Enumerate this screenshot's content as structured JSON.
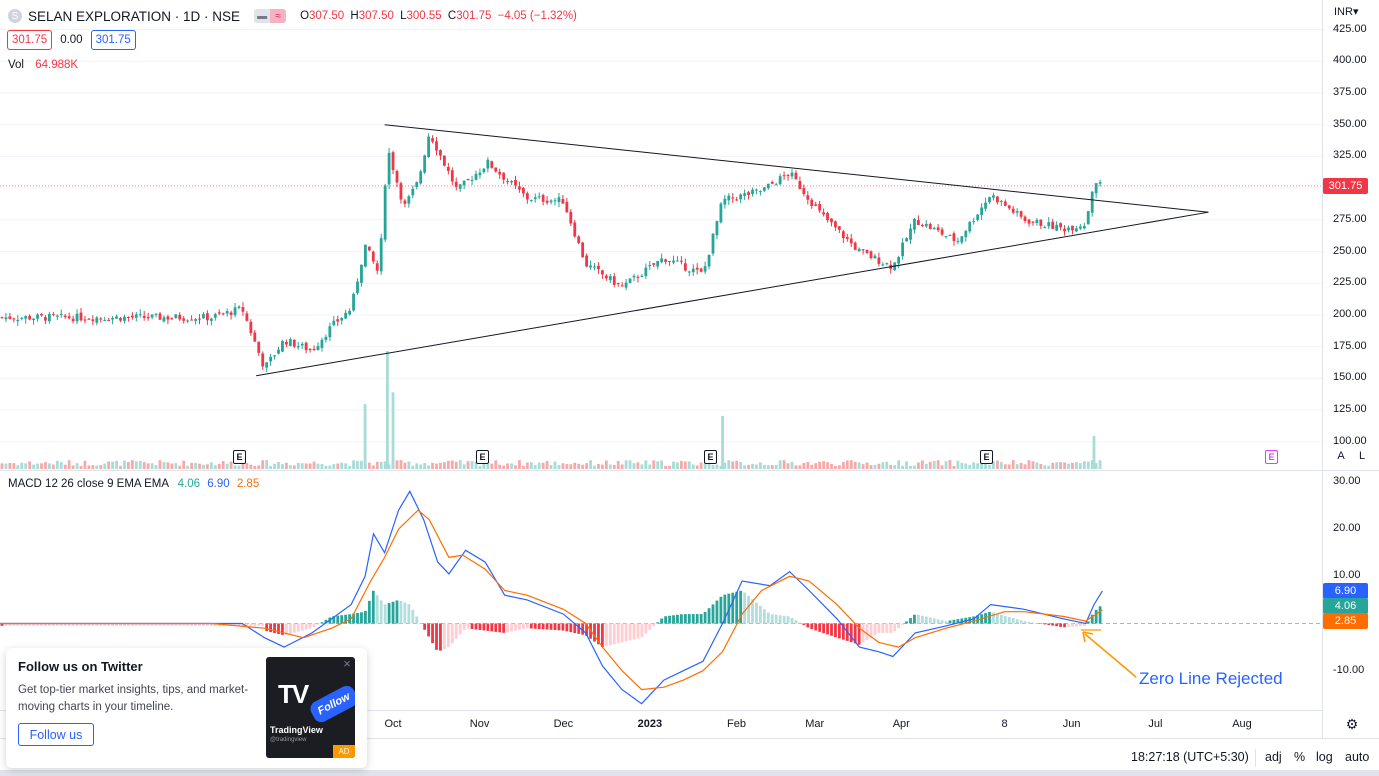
{
  "header": {
    "symbol_icon": "S",
    "title": "SELAN EXPLORATION · 1D · NSE",
    "toggle_left": "▬",
    "toggle_right": "≈",
    "ohlc": [
      {
        "label": "O",
        "value": "307.50"
      },
      {
        "label": "H",
        "value": "307.50"
      },
      {
        "label": "L",
        "value": "300.55"
      },
      {
        "label": "C",
        "value": "301.75"
      },
      {
        "label": "",
        "value": "−4.05 (−1.32%)"
      }
    ]
  },
  "price_boxes": {
    "sell": "301.75",
    "spread": "0.00",
    "buy": "301.75"
  },
  "volume": {
    "label": "Vol",
    "value": "64.988K"
  },
  "macd_legend": {
    "label": "MACD 12 26 close 9 EMA EMA",
    "hist": "4.06",
    "macd": "6.90",
    "signal": "2.85"
  },
  "currency": "INR▾",
  "current_price_label": "301.75",
  "scale_buttons": {
    "auto_label": "A",
    "log_label": "L"
  },
  "earnings_marker": "E",
  "bottom_bar": {
    "time": "18:27:18 (UTC+5:30)",
    "adj": "adj",
    "percent": "%",
    "log": "log",
    "auto": "auto"
  },
  "annotation": "Zero Line Rejected",
  "popup": {
    "title": "Follow us on Twitter",
    "body": "Get top-tier market insights, tips, and market-moving charts in your timeline.",
    "button": "Follow us",
    "image_follow": "Follow",
    "image_brand": "TradingView",
    "image_handle": "@tradingview",
    "ad": "AD",
    "close": "×"
  },
  "colors": {
    "up": "#26a69a",
    "down": "#f23645",
    "macd_line": "#2962ff",
    "signal_line": "#ff6d00",
    "annotation": "#2962ff"
  },
  "chart_data": [
    {
      "type": "candlestick",
      "title": "SELAN EXPLORATION · 1D · NSE",
      "ylim": [
        100,
        425
      ],
      "y_ticks": [
        "425.00",
        "400.00",
        "375.00",
        "350.00",
        "325.00",
        "300.00",
        "275.00",
        "250.00",
        "225.00",
        "200.00",
        "175.00",
        "150.00",
        "125.00",
        "100.00"
      ],
      "x_ticks": [
        "Oct",
        "Nov",
        "Dec",
        "2023",
        "Feb",
        "Mar",
        "Apr",
        "8",
        "Jun",
        "Jul",
        "Aug"
      ],
      "approx_close_path": [
        {
          "date": "2022-07-28",
          "close": 198
        },
        {
          "date": "2022-08-08",
          "close": 205
        },
        {
          "date": "2022-08-16",
          "close": 158
        },
        {
          "date": "2022-08-23",
          "close": 180
        },
        {
          "date": "2022-09-02",
          "close": 172
        },
        {
          "date": "2022-09-09",
          "close": 191
        },
        {
          "date": "2022-09-16",
          "close": 205
        },
        {
          "date": "2022-09-21",
          "close": 255
        },
        {
          "date": "2022-09-26",
          "close": 232
        },
        {
          "date": "2022-09-29",
          "close": 332
        },
        {
          "date": "2022-10-05",
          "close": 285
        },
        {
          "date": "2022-10-10",
          "close": 305
        },
        {
          "date": "2022-10-14",
          "close": 344
        },
        {
          "date": "2022-10-24",
          "close": 298
        },
        {
          "date": "2022-11-04",
          "close": 320
        },
        {
          "date": "2022-11-18",
          "close": 292
        },
        {
          "date": "2022-12-01",
          "close": 290
        },
        {
          "date": "2022-12-09",
          "close": 240
        },
        {
          "date": "2022-12-22",
          "close": 222
        },
        {
          "date": "2023-01-06",
          "close": 245
        },
        {
          "date": "2023-01-20",
          "close": 232
        },
        {
          "date": "2023-01-27",
          "close": 290
        },
        {
          "date": "2023-02-10",
          "close": 298
        },
        {
          "date": "2023-02-20",
          "close": 312
        },
        {
          "date": "2023-03-03",
          "close": 280
        },
        {
          "date": "2023-03-17",
          "close": 250
        },
        {
          "date": "2023-03-29",
          "close": 238
        },
        {
          "date": "2023-04-06",
          "close": 275
        },
        {
          "date": "2023-04-21",
          "close": 258
        },
        {
          "date": "2023-05-03",
          "close": 295
        },
        {
          "date": "2023-05-15",
          "close": 275
        },
        {
          "date": "2023-05-29",
          "close": 268
        },
        {
          "date": "2023-06-06",
          "close": 272
        },
        {
          "date": "2023-06-09",
          "close": 306
        },
        {
          "date": "2023-06-12",
          "close": 301.75
        }
      ],
      "trendlines": [
        {
          "name": "",
          "from": {
            "date": "2022-09-28",
            "value": 350
          },
          "to": {
            "date": "2023-07-20",
            "value": 281
          }
        },
        {
          "name": "",
          "from": {
            "date": "2022-08-13",
            "value": 152
          },
          "to": {
            "date": "2023-07-20",
            "value": 281
          }
        }
      ],
      "current_price": 301.75
    },
    {
      "type": "volume",
      "y_ticks": [
        "100.00"
      ],
      "spikes": [
        {
          "date": "2022-09-21",
          "relative": 0.55
        },
        {
          "date": "2022-09-29",
          "relative": 1.0
        },
        {
          "date": "2022-10-01",
          "relative": 0.65
        },
        {
          "date": "2023-01-27",
          "relative": 0.45
        },
        {
          "date": "2023-06-09",
          "relative": 0.28
        }
      ],
      "earnings_dates": [
        "2022-09-04",
        "2022-11-10",
        "2023-01-26",
        "2023-05-08",
        "2023-08-11"
      ]
    },
    {
      "type": "line",
      "title": "MACD 12 26 close 9 EMA EMA",
      "ylim": [
        -15,
        30
      ],
      "y_ticks": [
        "30.00",
        "20.00",
        "10.00",
        "-10.00"
      ],
      "series": [
        {
          "name": "",
          "color": "#2962ff",
          "points": [
            {
              "date": "2022-07-28",
              "value": 0
            },
            {
              "date": "2022-08-08",
              "value": 0
            },
            {
              "date": "2022-08-16",
              "value": -3
            },
            {
              "date": "2022-08-23",
              "value": -5
            },
            {
              "date": "2022-09-02",
              "value": -2
            },
            {
              "date": "2022-09-09",
              "value": 1
            },
            {
              "date": "2022-09-16",
              "value": 4
            },
            {
              "date": "2022-09-21",
              "value": 10
            },
            {
              "date": "2022-09-24",
              "value": 19
            },
            {
              "date": "2022-09-28",
              "value": 15
            },
            {
              "date": "2022-10-03",
              "value": 24
            },
            {
              "date": "2022-10-07",
              "value": 28
            },
            {
              "date": "2022-10-12",
              "value": 22
            },
            {
              "date": "2022-10-17",
              "value": 13
            },
            {
              "date": "2022-10-21",
              "value": 10.5
            },
            {
              "date": "2022-10-27",
              "value": 15.5
            },
            {
              "date": "2022-11-03",
              "value": 13
            },
            {
              "date": "2022-11-10",
              "value": 6
            },
            {
              "date": "2022-11-18",
              "value": 5
            },
            {
              "date": "2022-12-01",
              "value": 2
            },
            {
              "date": "2022-12-09",
              "value": -2
            },
            {
              "date": "2022-12-15",
              "value": -9
            },
            {
              "date": "2022-12-22",
              "value": -14
            },
            {
              "date": "2022-12-29",
              "value": -17
            },
            {
              "date": "2023-01-06",
              "value": -12
            },
            {
              "date": "2023-01-13",
              "value": -10
            },
            {
              "date": "2023-01-20",
              "value": -8
            },
            {
              "date": "2023-01-27",
              "value": 0
            },
            {
              "date": "2023-02-03",
              "value": 9
            },
            {
              "date": "2023-02-13",
              "value": 8
            },
            {
              "date": "2023-02-20",
              "value": 11
            },
            {
              "date": "2023-02-27",
              "value": 7
            },
            {
              "date": "2023-03-09",
              "value": 1
            },
            {
              "date": "2023-03-17",
              "value": -5
            },
            {
              "date": "2023-03-24",
              "value": -6
            },
            {
              "date": "2023-03-29",
              "value": -7
            },
            {
              "date": "2023-04-06",
              "value": -2
            },
            {
              "date": "2023-04-17",
              "value": -0.5
            },
            {
              "date": "2023-04-27",
              "value": 1
            },
            {
              "date": "2023-05-03",
              "value": 4
            },
            {
              "date": "2023-05-15",
              "value": 3
            },
            {
              "date": "2023-05-29",
              "value": 1
            },
            {
              "date": "2023-06-06",
              "value": 0
            },
            {
              "date": "2023-06-09",
              "value": 4
            },
            {
              "date": "2023-06-12",
              "value": 6.9
            }
          ]
        },
        {
          "name": "",
          "color": "#ff6d00",
          "points": [
            {
              "date": "2022-07-28",
              "value": 0
            },
            {
              "date": "2022-08-16",
              "value": -1
            },
            {
              "date": "2022-08-30",
              "value": -3
            },
            {
              "date": "2022-09-09",
              "value": -1
            },
            {
              "date": "2022-09-16",
              "value": 1
            },
            {
              "date": "2022-09-23",
              "value": 9
            },
            {
              "date": "2022-09-28",
              "value": 14
            },
            {
              "date": "2022-10-03",
              "value": 20
            },
            {
              "date": "2022-10-10",
              "value": 24
            },
            {
              "date": "2022-10-14",
              "value": 22
            },
            {
              "date": "2022-10-21",
              "value": 14
            },
            {
              "date": "2022-10-26",
              "value": 14.5
            },
            {
              "date": "2022-11-03",
              "value": 11.5
            },
            {
              "date": "2022-11-10",
              "value": 7
            },
            {
              "date": "2022-11-18",
              "value": 6
            },
            {
              "date": "2022-12-01",
              "value": 3
            },
            {
              "date": "2022-12-09",
              "value": 0
            },
            {
              "date": "2022-12-15",
              "value": -5
            },
            {
              "date": "2022-12-22",
              "value": -10
            },
            {
              "date": "2022-12-29",
              "value": -14
            },
            {
              "date": "2023-01-06",
              "value": -13.5
            },
            {
              "date": "2023-01-13",
              "value": -12
            },
            {
              "date": "2023-01-20",
              "value": -10
            },
            {
              "date": "2023-01-27",
              "value": -6
            },
            {
              "date": "2023-02-03",
              "value": 2
            },
            {
              "date": "2023-02-10",
              "value": 7
            },
            {
              "date": "2023-02-20",
              "value": 10
            },
            {
              "date": "2023-02-27",
              "value": 9
            },
            {
              "date": "2023-03-09",
              "value": 4
            },
            {
              "date": "2023-03-17",
              "value": -1
            },
            {
              "date": "2023-03-24",
              "value": -4
            },
            {
              "date": "2023-03-31",
              "value": -5
            },
            {
              "date": "2023-04-06",
              "value": -3
            },
            {
              "date": "2023-04-17",
              "value": -1
            },
            {
              "date": "2023-04-27",
              "value": 0.5
            },
            {
              "date": "2023-05-08",
              "value": 2.5
            },
            {
              "date": "2023-05-15",
              "value": 2.5
            },
            {
              "date": "2023-05-29",
              "value": 1.5
            },
            {
              "date": "2023-06-06",
              "value": 0.5
            },
            {
              "date": "2023-06-12",
              "value": 2.85
            }
          ]
        }
      ],
      "histogram": [
        {
          "date": "2022-08-16",
          "value": -1.5
        },
        {
          "date": "2022-08-23",
          "value": -2.5
        },
        {
          "date": "2022-09-02",
          "value": -1
        },
        {
          "date": "2022-09-09",
          "value": 1.5
        },
        {
          "date": "2022-09-16",
          "value": 2
        },
        {
          "date": "2022-09-21",
          "value": 2.5
        },
        {
          "date": "2022-09-24",
          "value": 7
        },
        {
          "date": "2022-09-28",
          "value": 4
        },
        {
          "date": "2022-10-03",
          "value": 5
        },
        {
          "date": "2022-10-07",
          "value": 4
        },
        {
          "date": "2022-10-12",
          "value": -1
        },
        {
          "date": "2022-10-17",
          "value": -6
        },
        {
          "date": "2022-10-21",
          "value": -5
        },
        {
          "date": "2022-10-27",
          "value": -1
        },
        {
          "date": "2022-11-03",
          "value": -1.5
        },
        {
          "date": "2022-11-10",
          "value": -2
        },
        {
          "date": "2022-11-18",
          "value": -1
        },
        {
          "date": "2022-12-01",
          "value": -1.5
        },
        {
          "date": "2022-12-09",
          "value": -2.5
        },
        {
          "date": "2022-12-15",
          "value": -5
        },
        {
          "date": "2022-12-22",
          "value": -4
        },
        {
          "date": "2022-12-29",
          "value": -3
        },
        {
          "date": "2023-01-06",
          "value": 1.5
        },
        {
          "date": "2023-01-13",
          "value": 2
        },
        {
          "date": "2023-01-20",
          "value": 2
        },
        {
          "date": "2023-01-27",
          "value": 6
        },
        {
          "date": "2023-02-03",
          "value": 7
        },
        {
          "date": "2023-02-13",
          "value": 2
        },
        {
          "date": "2023-02-20",
          "value": 1.5
        },
        {
          "date": "2023-02-27",
          "value": -1
        },
        {
          "date": "2023-03-09",
          "value": -3
        },
        {
          "date": "2023-03-17",
          "value": -4.5
        },
        {
          "date": "2023-03-24",
          "value": -2
        },
        {
          "date": "2023-03-29",
          "value": -2
        },
        {
          "date": "2023-04-06",
          "value": 2
        },
        {
          "date": "2023-04-17",
          "value": 0.5
        },
        {
          "date": "2023-04-27",
          "value": 1.5
        },
        {
          "date": "2023-05-03",
          "value": 2.5
        },
        {
          "date": "2023-05-15",
          "value": 0.5
        },
        {
          "date": "2023-05-29",
          "value": -0.8
        },
        {
          "date": "2023-06-06",
          "value": -0.5
        },
        {
          "date": "2023-06-09",
          "value": 2.5
        },
        {
          "date": "2023-06-12",
          "value": 4.06
        }
      ]
    }
  ]
}
